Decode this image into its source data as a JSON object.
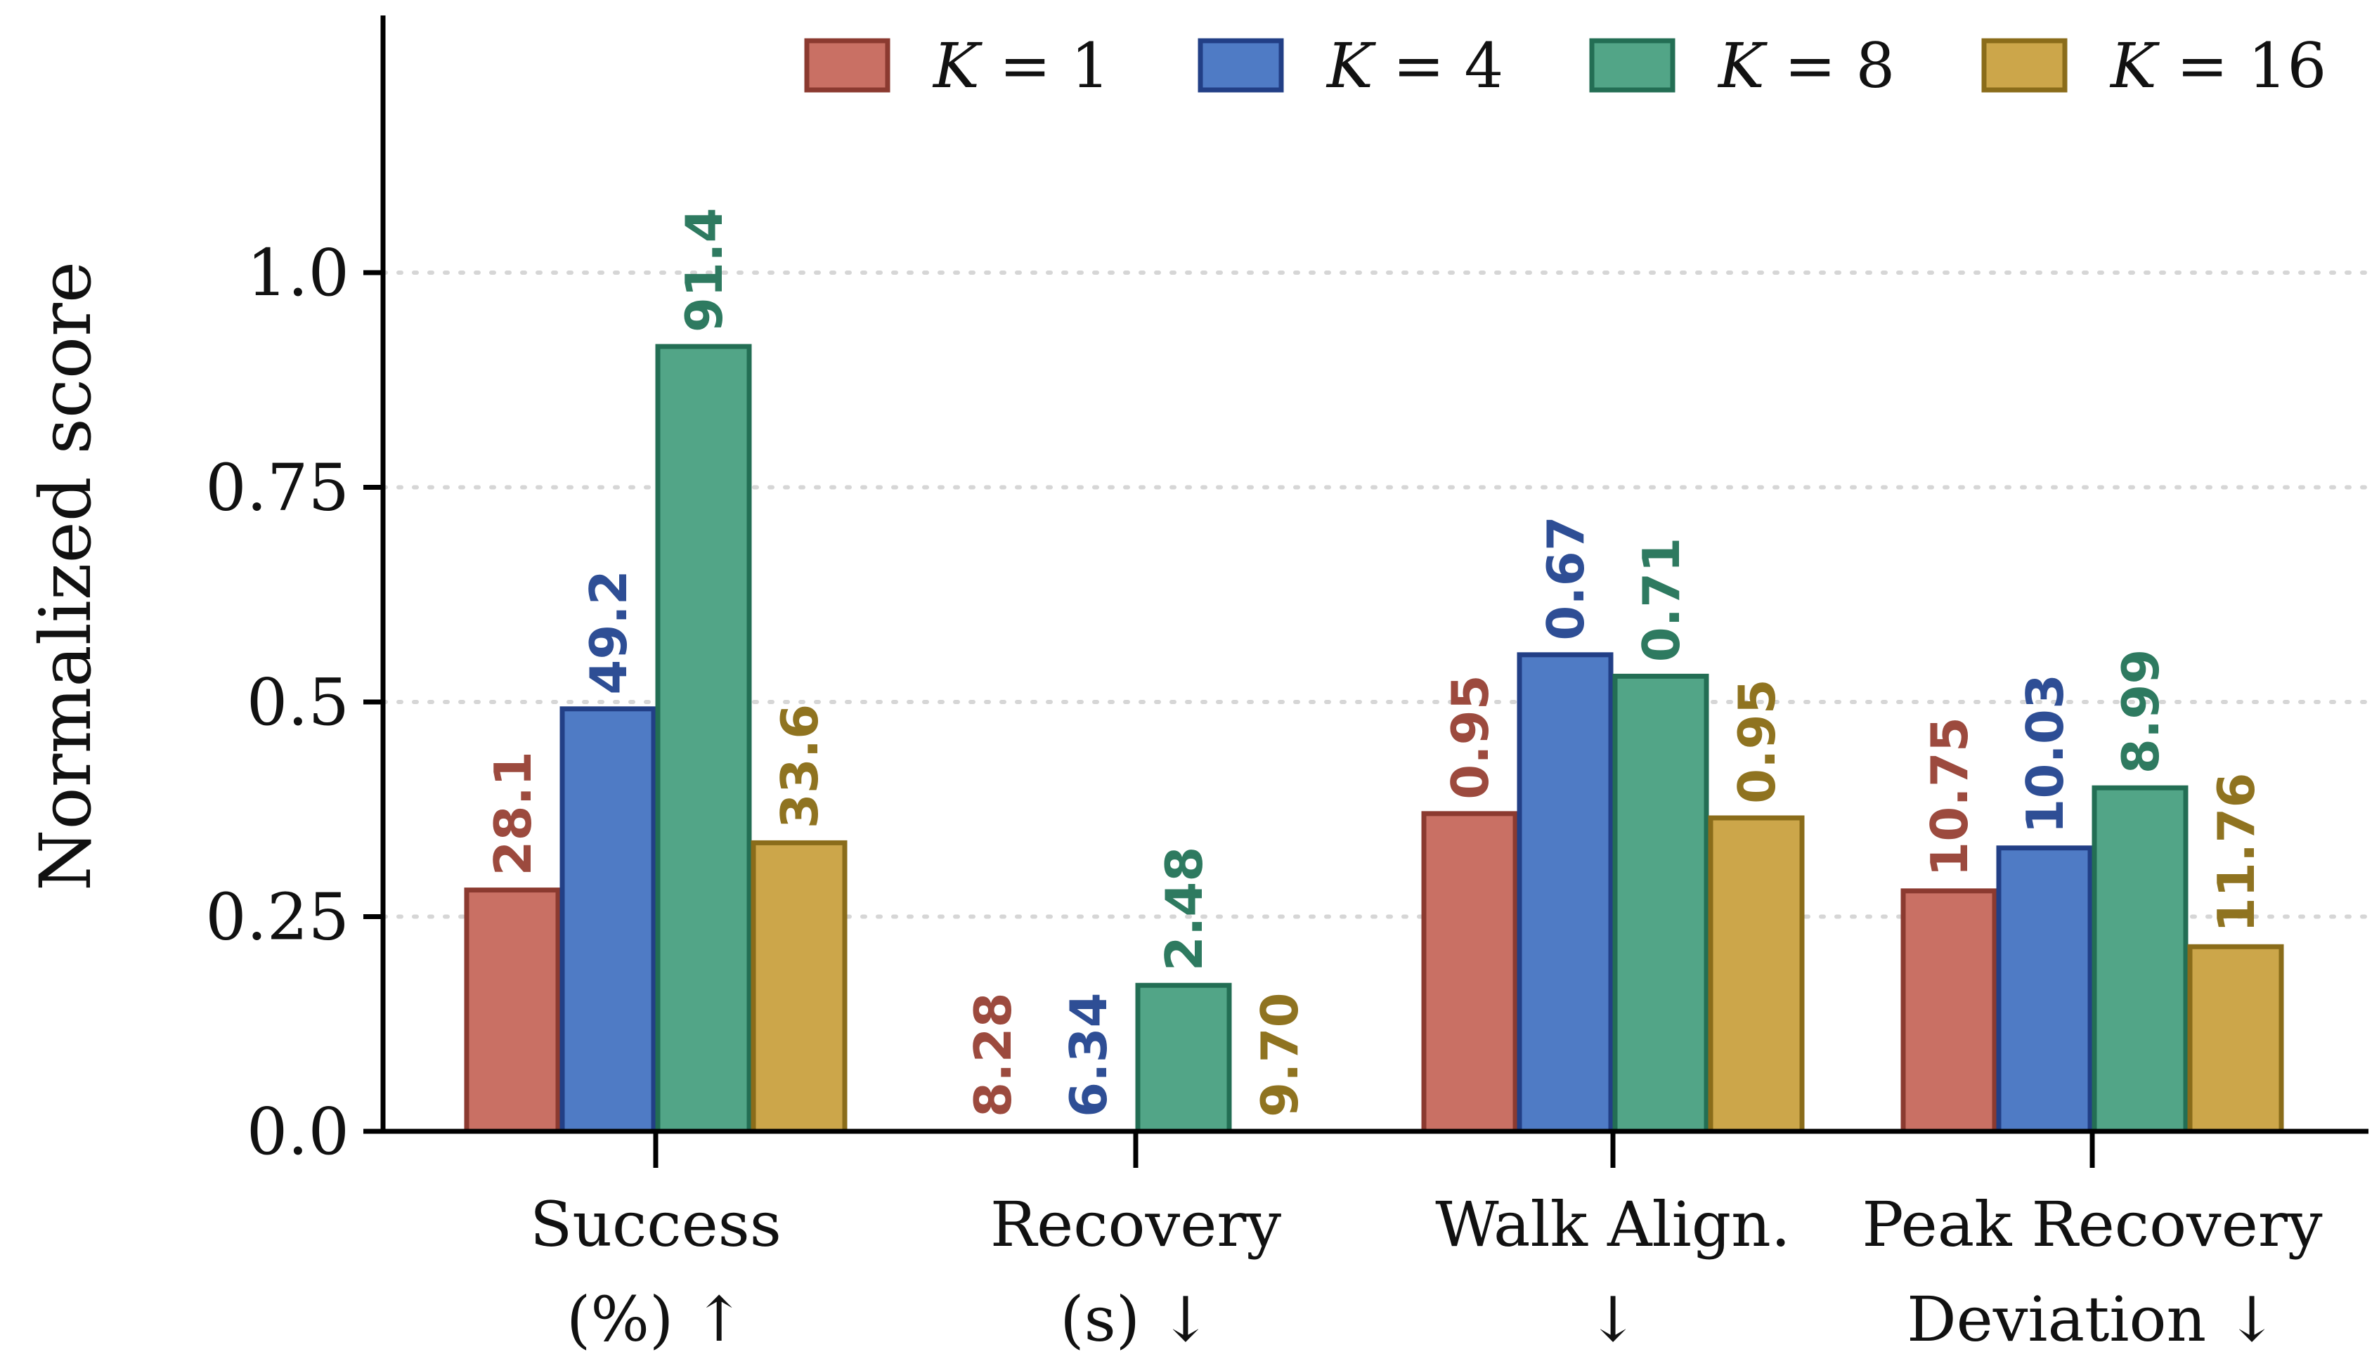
{
  "chart_data": {
    "type": "bar",
    "ylabel": "Normalized score",
    "ylim": [
      0,
      1.0
    ],
    "yticks": [
      "0.0",
      "0.25",
      "0.5",
      "0.75",
      "1.0"
    ],
    "grid": "horizontal dotted",
    "legend_position": "top-right",
    "categories": [
      {
        "line1": "Success",
        "line2": "(%) ↑"
      },
      {
        "line1": "Recovery",
        "line2": "(s) ↓"
      },
      {
        "line1": "Walk Align.",
        "line2": "↓"
      },
      {
        "line1": "Peak Recovery",
        "line2": "Deviation ↓"
      }
    ],
    "series": [
      {
        "name": "K = 1",
        "fill": "#C97064",
        "stroke": "#8B3A30",
        "label_color": "#9C4A3E",
        "values": [
          0.281,
          0.0,
          0.37,
          0.28
        ],
        "labels": [
          "28.1",
          "8.28",
          "0.95",
          "10.75"
        ]
      },
      {
        "name": "K = 4",
        "fill": "#4F7BC5",
        "stroke": "#223F86",
        "label_color": "#2E4E95",
        "values": [
          0.492,
          0.0,
          0.555,
          0.33
        ],
        "labels": [
          "49.2",
          "6.34",
          "0.67",
          "10.03"
        ]
      },
      {
        "name": "K = 8",
        "fill": "#52A587",
        "stroke": "#236E54",
        "label_color": "#2E7A60",
        "values": [
          0.914,
          0.17,
          0.53,
          0.4
        ],
        "labels": [
          "91.4",
          "2.48",
          "0.71",
          "8.99"
        ]
      },
      {
        "name": "K = 16",
        "fill": "#CCA64A",
        "stroke": "#8A6C1A",
        "label_color": "#8F7320",
        "values": [
          0.336,
          0.0,
          0.365,
          0.215
        ],
        "labels": [
          "33.6",
          "9.70",
          "0.95",
          "11.76"
        ]
      }
    ]
  }
}
